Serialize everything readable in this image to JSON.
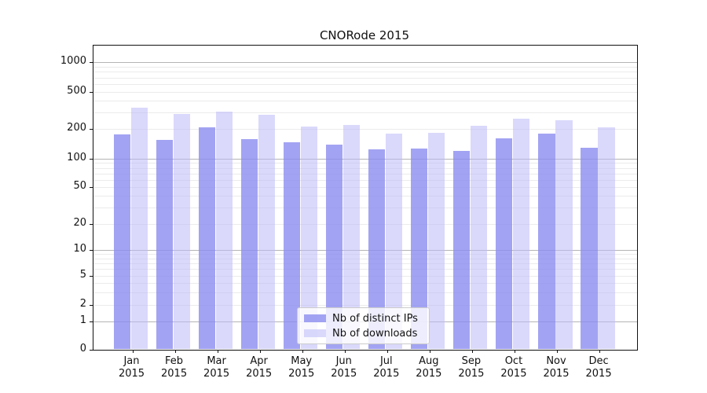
{
  "title": "CNORode 2015",
  "chart_data": {
    "type": "bar",
    "title": "CNORode 2015",
    "x_ticks": [
      {
        "line1": "Jan",
        "line2": "2015"
      },
      {
        "line1": "Feb",
        "line2": "2015"
      },
      {
        "line1": "Mar",
        "line2": "2015"
      },
      {
        "line1": "Apr",
        "line2": "2015"
      },
      {
        "line1": "May",
        "line2": "2015"
      },
      {
        "line1": "Jun",
        "line2": "2015"
      },
      {
        "line1": "Jul",
        "line2": "2015"
      },
      {
        "line1": "Aug",
        "line2": "2015"
      },
      {
        "line1": "Sep",
        "line2": "2015"
      },
      {
        "line1": "Oct",
        "line2": "2015"
      },
      {
        "line1": "Nov",
        "line2": "2015"
      },
      {
        "line1": "Dec",
        "line2": "2015"
      }
    ],
    "series": [
      {
        "name": "Nb of distinct IPs",
        "color": "#8c8cf0",
        "values": [
          176,
          156,
          209,
          158,
          146,
          139,
          124,
          127,
          121,
          162,
          178,
          130
        ]
      },
      {
        "name": "Nb of downloads",
        "color": "#bcbaf8",
        "values": [
          340,
          289,
          308,
          286,
          214,
          219,
          179,
          183,
          215,
          257,
          246,
          209
        ]
      }
    ],
    "y_ticks": {
      "values": [
        0,
        1,
        2,
        5,
        10,
        20,
        50,
        100,
        200,
        500,
        1000
      ],
      "labels": [
        "0",
        "1",
        "2",
        "5",
        "10",
        "20",
        "50",
        "100",
        "200",
        "500",
        "1000"
      ]
    },
    "yscale": "symlog",
    "ylim": [
      0,
      1500
    ],
    "grid": "horizontal; major gray lines at 1, 10, 100, 1000; faint minor log subdivisions",
    "legend_location": "inside plot, lower center"
  }
}
